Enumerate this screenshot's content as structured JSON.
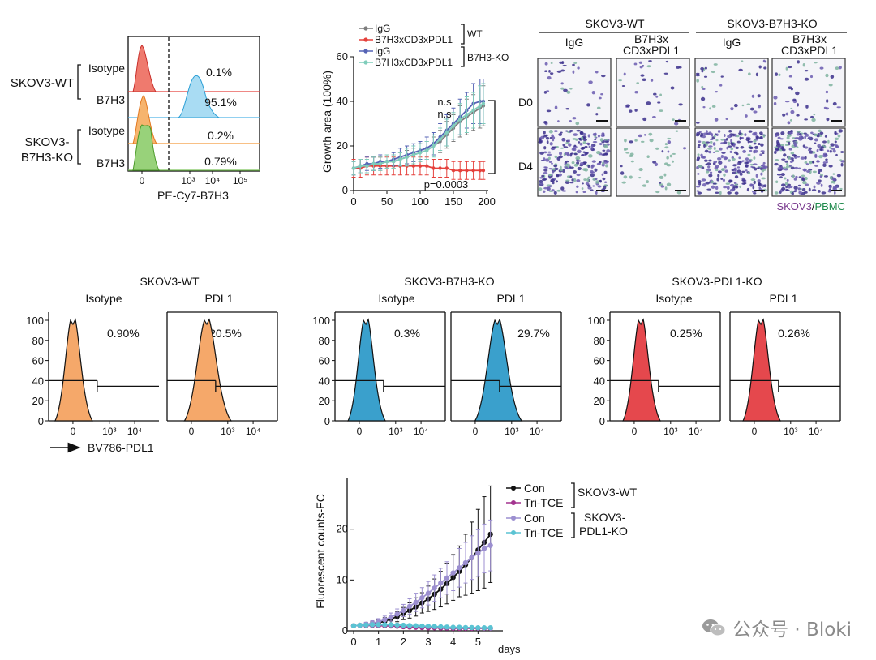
{
  "panel_a": {
    "xlabel": "PE-Cy7-B7H3",
    "ticks": [
      "0",
      "10³",
      "10⁴",
      "10⁵"
    ],
    "group_wt": "SKOV3-WT",
    "group_ko": [
      "SKOV3-",
      "B7H3-KO"
    ],
    "rows": [
      {
        "label": "Isotype",
        "pct": "0.1%",
        "color": "#e8504f"
      },
      {
        "label": "B7H3",
        "pct": "95.1%",
        "color": "#4fb5e6"
      },
      {
        "label": "Isotype",
        "pct": "0.2%",
        "color": "#f39a3c"
      },
      {
        "label": "B7H3",
        "pct": "0.79%",
        "color": "#7cc35a"
      }
    ]
  },
  "chart_data": [
    {
      "type": "line",
      "id": "growth_area",
      "title": "",
      "ylabel": "Growth area (100%)",
      "xlabel": "",
      "x": [
        0,
        10,
        20,
        30,
        40,
        50,
        60,
        70,
        80,
        90,
        100,
        110,
        120,
        130,
        140,
        150,
        160,
        170,
        180,
        190,
        195
      ],
      "xlim": [
        0,
        200
      ],
      "ylim": [
        0,
        60
      ],
      "xticks": [
        0,
        50,
        100,
        150,
        200
      ],
      "yticks": [
        0,
        20,
        40,
        60
      ],
      "series": [
        {
          "name": "IgG",
          "group": "WT",
          "color": "#7d7d7d",
          "values": [
            10,
            11,
            11,
            12,
            12,
            13,
            13,
            14,
            15,
            16,
            17,
            18,
            20,
            22,
            25,
            28,
            31,
            33,
            35,
            37,
            38
          ],
          "err": [
            3,
            3,
            3,
            3,
            3,
            3,
            3,
            3,
            3,
            3,
            4,
            4,
            4,
            5,
            6,
            6,
            7,
            8,
            8,
            9,
            9
          ]
        },
        {
          "name": "B7H3xCD3xPDL1",
          "group": "WT",
          "color": "#e5413c",
          "values": [
            10,
            10,
            11,
            11,
            11,
            11,
            11,
            11,
            11,
            11,
            11,
            11,
            10,
            10,
            10,
            9,
            9,
            9,
            9,
            9,
            9
          ],
          "err": [
            4,
            4,
            4,
            4,
            4,
            4,
            4,
            4,
            4,
            4,
            4,
            4,
            4,
            4,
            4,
            4,
            4,
            4,
            4,
            4,
            4
          ]
        },
        {
          "name": "IgG",
          "group": "B7H3-KO",
          "color": "#5563b5",
          "values": [
            10,
            11,
            12,
            12,
            13,
            13,
            14,
            15,
            16,
            17,
            18,
            19,
            21,
            24,
            27,
            30,
            33,
            36,
            39,
            40,
            40
          ],
          "err": [
            3,
            3,
            3,
            3,
            3,
            3,
            3,
            4,
            4,
            4,
            4,
            5,
            5,
            6,
            7,
            7,
            8,
            8,
            9,
            10,
            10
          ]
        },
        {
          "name": "B7H3xCD3xPDL1",
          "group": "B7H3-KO",
          "color": "#7fcdbb",
          "values": [
            10,
            11,
            11,
            12,
            12,
            13,
            13,
            14,
            15,
            16,
            17,
            18,
            20,
            23,
            26,
            29,
            32,
            34,
            36,
            38,
            39
          ],
          "err": [
            3,
            3,
            3,
            3,
            3,
            3,
            3,
            3,
            4,
            4,
            4,
            4,
            5,
            5,
            6,
            6,
            7,
            8,
            8,
            9,
            9
          ]
        }
      ],
      "legend_groups": [
        "WT",
        "B7H3-KO"
      ],
      "annotations": [
        "n.s",
        "n.s",
        "p=0.0003"
      ]
    },
    {
      "type": "line",
      "id": "fluorescent_counts",
      "ylabel": "Fluorescent counts-FC",
      "xlabel": "days",
      "x": [
        0,
        0.25,
        0.5,
        0.75,
        1,
        1.25,
        1.5,
        1.75,
        2,
        2.25,
        2.5,
        2.75,
        3,
        3.25,
        3.5,
        3.75,
        4,
        4.25,
        4.5,
        4.75,
        5,
        5.25,
        5.5
      ],
      "xlim": [
        0,
        6
      ],
      "ylim": [
        0,
        30
      ],
      "xticks": [
        0,
        1,
        2,
        3,
        4,
        5
      ],
      "yticks": [
        0,
        10,
        20
      ],
      "series": [
        {
          "name": "Con",
          "group": "SKOV3-WT",
          "color": "#111111",
          "values": [
            1,
            1.1,
            1.2,
            1.4,
            1.6,
            1.9,
            2.3,
            2.8,
            3.4,
            4,
            4.7,
            5.5,
            6.3,
            7.2,
            8.2,
            9.3,
            10.5,
            11.7,
            13,
            14.4,
            15.9,
            17.4,
            19
          ],
          "err": [
            0.3,
            0.3,
            0.4,
            0.5,
            0.6,
            0.7,
            0.8,
            1,
            1.2,
            1.5,
            1.8,
            2,
            2.5,
            3,
            3.5,
            4,
            4.5,
            5,
            6,
            7,
            8,
            9,
            9.5
          ]
        },
        {
          "name": "Tri-TCE",
          "group": "SKOV3-WT",
          "color": "#a3348f",
          "values": [
            1,
            1.05,
            1.05,
            1.05,
            1,
            1,
            0.95,
            0.9,
            0.8,
            0.75,
            0.7,
            0.65,
            0.6,
            0.6,
            0.55,
            0.55,
            0.5,
            0.5,
            0.5,
            0.5,
            0.5,
            0.5,
            0.5
          ],
          "err": [
            0.2,
            0.2,
            0.2,
            0.2,
            0.2,
            0.2,
            0.2,
            0.2,
            0.2,
            0.2,
            0.2,
            0.2,
            0.2,
            0.2,
            0.2,
            0.2,
            0.2,
            0.2,
            0.2,
            0.2,
            0.2,
            0.2,
            0.2
          ]
        },
        {
          "name": "Con",
          "group": "SKOV3-PDL1-KO",
          "color": "#9c8fd0",
          "values": [
            1,
            1.1,
            1.3,
            1.5,
            1.8,
            2.2,
            2.7,
            3.3,
            4,
            4.8,
            5.6,
            6.5,
            7.4,
            8.4,
            9.4,
            10.4,
            11.4,
            12.4,
            13.4,
            14.4,
            15.3,
            16.2,
            16.8
          ],
          "err": [
            0.3,
            0.3,
            0.4,
            0.5,
            0.6,
            0.7,
            0.8,
            1,
            1.2,
            1.5,
            1.8,
            2,
            2.3,
            2.6,
            2.9,
            3.2,
            3.5,
            3.8,
            4,
            4.3,
            4.6,
            4.8,
            5
          ]
        },
        {
          "name": "Tri-TCE",
          "group": "SKOV3-PDL1-KO",
          "color": "#5bc3d3",
          "values": [
            1,
            1.1,
            1.15,
            1.2,
            1.2,
            1.2,
            1.2,
            1.15,
            1.1,
            1.05,
            1,
            0.95,
            0.9,
            0.85,
            0.8,
            0.75,
            0.7,
            0.7,
            0.65,
            0.65,
            0.6,
            0.6,
            0.6
          ],
          "err": [
            0.2,
            0.2,
            0.2,
            0.2,
            0.2,
            0.2,
            0.2,
            0.2,
            0.2,
            0.2,
            0.2,
            0.2,
            0.2,
            0.2,
            0.2,
            0.2,
            0.2,
            0.2,
            0.2,
            0.2,
            0.2,
            0.2,
            0.2
          ]
        }
      ],
      "legend_groups": [
        "SKOV3-WT",
        "SKOV3-\nPDL1-KO"
      ]
    }
  ],
  "growth_legend": {
    "labels": [
      "IgG",
      "B7H3xCD3xPDL1",
      "IgG",
      "B7H3xCD3xPDL1"
    ],
    "groups": [
      "WT",
      "B7H3-KO"
    ]
  },
  "micrographs": {
    "groups": [
      "SKOV3-WT",
      "SKOV3-B7H3-KO"
    ],
    "columns": [
      "IgG",
      "B7H3x",
      "CD3xPDL1",
      "IgG",
      "B7H3x",
      "CD3xPDL1"
    ],
    "rows": [
      "D0",
      "D4"
    ],
    "legend_a": "SKOV3",
    "legend_sep": "/",
    "legend_b": "PBMC",
    "color_a": "#7a3b8f",
    "color_b": "#1f8a4c"
  },
  "panel_pdl1": {
    "groups": [
      {
        "title": "SKOV3-WT",
        "color": "#f5a86a",
        "cols": [
          "Isotype",
          "PDL1"
        ],
        "pcts": [
          "0.90%",
          "20.5%"
        ]
      },
      {
        "title": "SKOV3-B7H3-KO",
        "color": "#3aa0cc",
        "cols": [
          "Isotype",
          "PDL1"
        ],
        "pcts": [
          "0.3%",
          "29.7%"
        ]
      },
      {
        "title": "SKOV3-PDL1-KO",
        "color": "#e5484d",
        "cols": [
          "Isotype",
          "PDL1"
        ],
        "pcts": [
          "0.25%",
          "0.26%"
        ]
      }
    ],
    "yticks": [
      "0",
      "20",
      "40",
      "60",
      "80",
      "100"
    ],
    "xticks": [
      "0",
      "10³",
      "10⁴"
    ],
    "xlabel": "BV786-PDL1"
  },
  "fc_legend": {
    "labels": [
      "Con",
      "Tri-TCE",
      "Con",
      "Tri-TCE"
    ],
    "group_wt": "SKOV3-WT",
    "group_ko": [
      "SKOV3-",
      "PDL1-KO"
    ]
  },
  "watermark": {
    "text": "公众号 · Bloki",
    "icon": "wechat-icon"
  }
}
